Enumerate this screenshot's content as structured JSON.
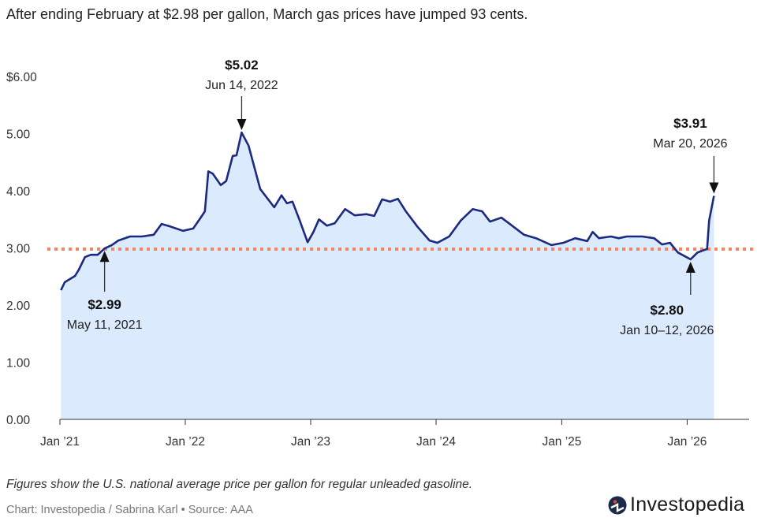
{
  "title": "After ending February at $2.98 per gallon, March gas prices have jumped 93 cents.",
  "note": "Figures show the U.S. national average price per gallon for regular unleaded gasoline.",
  "credit": "Chart: Investopedia / Sabrina Karl • Source: AAA",
  "logo": {
    "text": "Investopedia",
    "icon": "investopedia-logo-icon"
  },
  "colors": {
    "line": "#1b2a80",
    "fill": "#dbeafc",
    "reference": "#f4845f",
    "text": "#222222"
  },
  "chart_data": {
    "type": "area",
    "title": "After ending February at $2.98 per gallon, March gas prices have jumped 93 cents.",
    "xlabel": "",
    "ylabel": "",
    "ylim": [
      0,
      6
    ],
    "xlim": [
      "2021-01-01",
      "2026-06-30"
    ],
    "grid": false,
    "y_ticks": [
      {
        "value": 0,
        "label": "0.00"
      },
      {
        "value": 1,
        "label": "1.00"
      },
      {
        "value": 2,
        "label": "2.00"
      },
      {
        "value": 3,
        "label": "3.00"
      },
      {
        "value": 4,
        "label": "4.00"
      },
      {
        "value": 5,
        "label": "5.00"
      },
      {
        "value": 6,
        "label": "$6.00"
      }
    ],
    "x_ticks": [
      {
        "date": "2021-01-01",
        "label": "Jan ’21"
      },
      {
        "date": "2022-01-01",
        "label": "Jan ’22"
      },
      {
        "date": "2023-01-01",
        "label": "Jan ’23"
      },
      {
        "date": "2024-01-01",
        "label": "Jan ’24"
      },
      {
        "date": "2025-01-01",
        "label": "Jan ’25"
      },
      {
        "date": "2026-01-01",
        "label": "Jan ’26"
      }
    ],
    "reference_line": {
      "value": 2.98,
      "style": "dotted"
    },
    "series": [
      {
        "x": [
          "2021-01-04",
          "2021-01-15",
          "2021-02-14",
          "2021-02-25",
          "2021-03-15",
          "2021-04-01",
          "2021-04-21",
          "2021-05-11",
          "2021-06-01",
          "2021-06-20",
          "2021-07-24",
          "2021-08-28",
          "2021-10-01",
          "2021-10-24",
          "2021-11-16",
          "2021-12-25",
          "2022-01-24",
          "2022-02-16",
          "2022-02-27",
          "2022-03-09",
          "2022-03-22",
          "2022-04-14",
          "2022-04-30",
          "2022-05-19",
          "2022-05-30",
          "2022-06-14",
          "2022-07-04",
          "2022-08-07",
          "2022-09-17",
          "2022-10-08",
          "2022-10-24",
          "2022-11-09",
          "2022-11-30",
          "2022-12-23",
          "2023-01-09",
          "2023-01-25",
          "2023-02-17",
          "2023-03-12",
          "2023-04-11",
          "2023-05-09",
          "2023-06-12",
          "2023-07-05",
          "2023-07-28",
          "2023-08-20",
          "2023-09-12",
          "2023-10-05",
          "2023-11-08",
          "2023-12-13",
          "2024-01-05",
          "2024-02-08",
          "2024-03-13",
          "2024-04-17",
          "2024-05-14",
          "2024-06-06",
          "2024-07-09",
          "2024-08-05",
          "2024-09-13",
          "2024-10-18",
          "2024-12-02",
          "2025-01-06",
          "2025-02-09",
          "2025-03-16",
          "2025-04-01",
          "2025-04-19",
          "2025-05-24",
          "2025-06-16",
          "2025-07-09",
          "2025-08-23",
          "2025-09-27",
          "2025-10-20",
          "2025-11-12",
          "2025-12-05",
          "2026-01-11",
          "2026-01-31",
          "2026-02-28",
          "2026-03-06",
          "2026-03-20"
        ],
        "values": [
          2.26,
          2.4,
          2.51,
          2.62,
          2.84,
          2.88,
          2.88,
          2.99,
          3.05,
          3.13,
          3.2,
          3.2,
          3.23,
          3.42,
          3.38,
          3.3,
          3.34,
          3.54,
          3.64,
          4.34,
          4.3,
          4.1,
          4.17,
          4.61,
          4.62,
          5.02,
          4.79,
          4.03,
          3.71,
          3.92,
          3.78,
          3.81,
          3.48,
          3.1,
          3.28,
          3.5,
          3.39,
          3.43,
          3.68,
          3.57,
          3.59,
          3.56,
          3.85,
          3.81,
          3.86,
          3.64,
          3.37,
          3.13,
          3.09,
          3.2,
          3.48,
          3.68,
          3.64,
          3.46,
          3.53,
          3.41,
          3.23,
          3.17,
          3.05,
          3.09,
          3.17,
          3.12,
          3.28,
          3.17,
          3.2,
          3.17,
          3.2,
          3.2,
          3.17,
          3.06,
          3.09,
          2.92,
          2.8,
          2.92,
          2.98,
          3.48,
          3.91
        ]
      }
    ],
    "annotations": [
      {
        "value_label": "$2.99",
        "date_label": "May 11, 2021",
        "date": "2021-05-11",
        "value": 2.99,
        "arrow": "up"
      },
      {
        "value_label": "$5.02",
        "date_label": "Jun 14, 2022",
        "date": "2022-06-14",
        "value": 5.02,
        "arrow": "down"
      },
      {
        "value_label": "$2.80",
        "date_label": "Jan 10–12, 2026",
        "date": "2026-01-11",
        "value": 2.8,
        "arrow": "up"
      },
      {
        "value_label": "$3.91",
        "date_label": "Mar 20, 2026",
        "date": "2026-03-20",
        "value": 3.91,
        "arrow": "down"
      }
    ]
  }
}
